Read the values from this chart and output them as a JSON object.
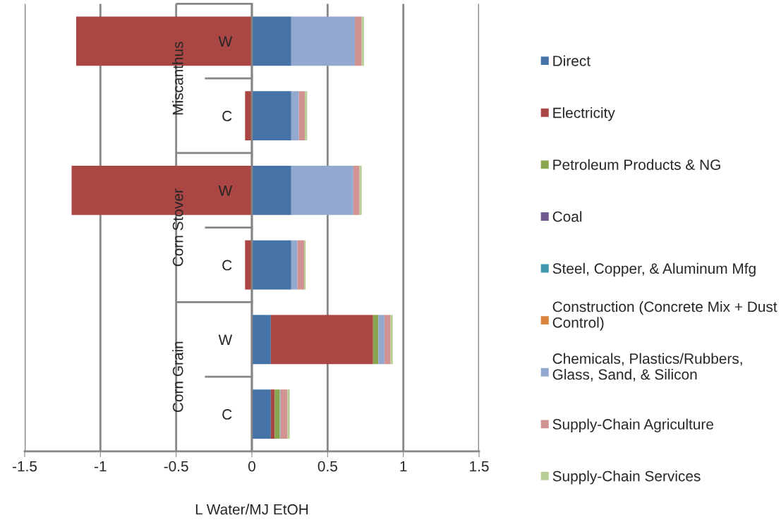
{
  "chart_data": {
    "type": "bar",
    "orientation": "horizontal",
    "stacked": true,
    "categories": [
      "W",
      "C",
      "W",
      "C",
      "W",
      "C"
    ],
    "annotations": [
      "Miscanthus",
      "Corn Stover",
      "Corn Grain"
    ],
    "xlabel": "L Water/MJ EtOH",
    "xlim": [
      -1.5,
      1.5
    ],
    "xticks": [
      -1.5,
      -1,
      -0.5,
      0,
      0.5,
      1,
      1.5
    ],
    "grid": "x",
    "legend": "right",
    "series": [
      {
        "name": "Direct",
        "color": "#4572a7",
        "values": [
          0.26,
          0.26,
          0.26,
          0.26,
          0.125,
          0.125
        ]
      },
      {
        "name": "Electricity",
        "color": "#aa4643",
        "values": [
          -1.16,
          -0.045,
          -1.19,
          -0.045,
          0.675,
          0.025
        ]
      },
      {
        "name": "Petroleum Products & NG",
        "color": "#89a54e",
        "values": [
          0,
          0,
          0,
          0,
          0.035,
          0.035
        ]
      },
      {
        "name": "Coal",
        "color": "#71588f",
        "values": [
          0,
          0,
          0,
          0,
          0,
          0
        ]
      },
      {
        "name": "Steel, Copper, & Aluminum Mfg",
        "color": "#4198af",
        "values": [
          0,
          0,
          0,
          0,
          0,
          0
        ]
      },
      {
        "name": "Construction (Concrete Mix + Dust Control)",
        "color": "#db843d",
        "values": [
          0,
          0,
          0,
          0,
          0,
          0
        ]
      },
      {
        "name": "Chemicals, Plastics/Rubbers, Glass, Sand, & Silicon",
        "color": "#93a9cf",
        "values": [
          0.42,
          0.05,
          0.41,
          0.04,
          0.04,
          0.005
        ]
      },
      {
        "name": "Supply-Chain Agriculture",
        "color": "#d19392",
        "values": [
          0.045,
          0.04,
          0.04,
          0.045,
          0.04,
          0.045
        ]
      },
      {
        "name": "Supply-Chain Services",
        "color": "#b9cd96",
        "values": [
          0.015,
          0.015,
          0.015,
          0.01,
          0.015,
          0.015
        ]
      }
    ]
  }
}
